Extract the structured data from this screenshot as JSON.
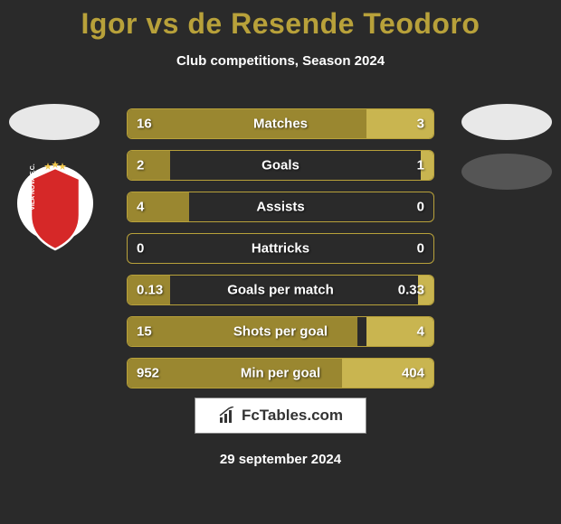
{
  "title_color": "#b8a13a",
  "title": "Igor vs de Resende Teodoro",
  "subtitle": "Club competitions, Season 2024",
  "left_fill_color": "#9a8730",
  "right_fill_color": "#c9b550",
  "border_color": "#b8a13a",
  "background_color": "#2a2a2a",
  "text_color": "#ffffff",
  "badge_left_color": "#e8e8e8",
  "badge_right_color": "#e8e8e8",
  "badge_right2_color": "#555555",
  "crest": {
    "outer": "#ffffff",
    "shield": "#d62828",
    "shield_stroke": "#ffffff",
    "text": "VILA NOVA F.C.",
    "stars": "#f2c94c"
  },
  "bars": [
    {
      "label": "Matches",
      "left": "16",
      "right": "3",
      "left_pct": 78,
      "right_pct": 22
    },
    {
      "label": "Goals",
      "left": "2",
      "right": "1",
      "left_pct": 14,
      "right_pct": 4
    },
    {
      "label": "Assists",
      "left": "4",
      "right": "0",
      "left_pct": 20,
      "right_pct": 0
    },
    {
      "label": "Hattricks",
      "left": "0",
      "right": "0",
      "left_pct": 0,
      "right_pct": 0
    },
    {
      "label": "Goals per match",
      "left": "0.13",
      "right": "0.33",
      "left_pct": 14,
      "right_pct": 5
    },
    {
      "label": "Shots per goal",
      "left": "15",
      "right": "4",
      "left_pct": 75,
      "right_pct": 22
    },
    {
      "label": "Min per goal",
      "left": "952",
      "right": "404",
      "left_pct": 70,
      "right_pct": 30
    }
  ],
  "brand": "FcTables.com",
  "date": "29 september 2024"
}
